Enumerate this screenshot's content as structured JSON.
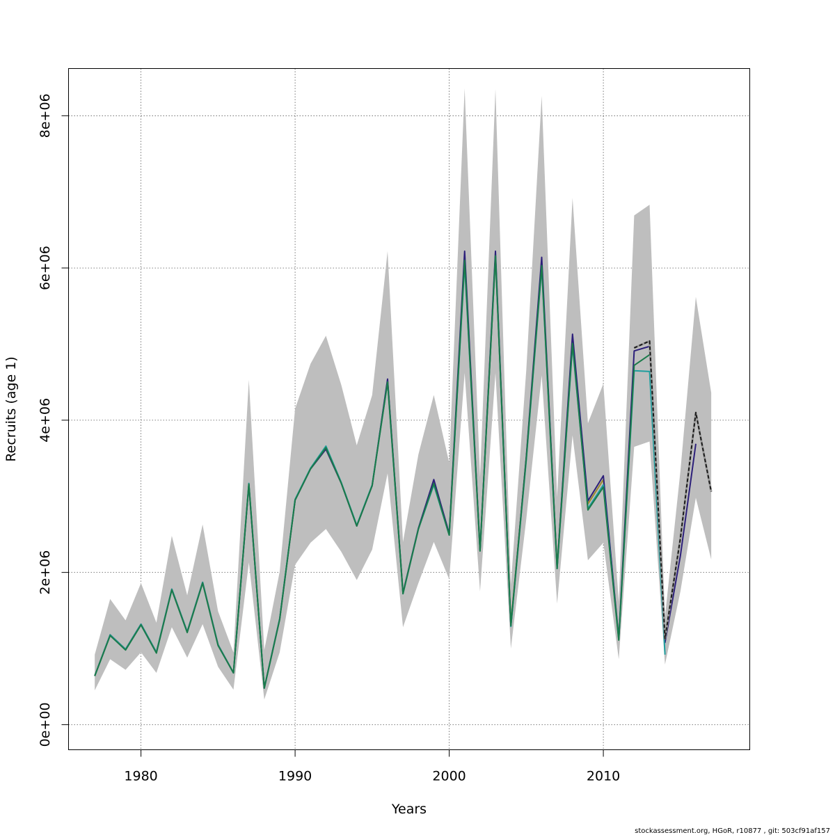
{
  "chart_data": {
    "type": "line",
    "title": "",
    "xlabel": "Years",
    "ylabel": "Recruits (age 1)",
    "xlim": [
      1975.3,
      2019.5
    ],
    "ylim": [
      -330000,
      8620000
    ],
    "x_ticks": [
      1980,
      1990,
      2000,
      2010
    ],
    "x_tick_labels": [
      "1980",
      "1990",
      "2000",
      "2010"
    ],
    "y_ticks": [
      0,
      2000000,
      4000000,
      6000000,
      8000000
    ],
    "y_tick_labels": [
      "0e+00",
      "2e+06",
      "4e+06",
      "6e+06",
      "8e+06"
    ],
    "grid": true,
    "legend": "none",
    "confidence_band": {
      "x": [
        1977,
        1978,
        1979,
        1980,
        1981,
        1982,
        1983,
        1984,
        1985,
        1986,
        1987,
        1988,
        1989,
        1990,
        1991,
        1992,
        1993,
        1994,
        1995,
        1996,
        1997,
        1998,
        1999,
        2000,
        2001,
        2002,
        2003,
        2004,
        2005,
        2006,
        2007,
        2008,
        2009,
        2010,
        2011,
        2012,
        2013,
        2014,
        2015,
        2016,
        2017
      ],
      "lower": [
        450000,
        860000,
        720000,
        950000,
        680000,
        1280000,
        880000,
        1320000,
        760000,
        460000,
        2130000,
        330000,
        950000,
        2100000,
        2390000,
        2570000,
        2270000,
        1900000,
        2300000,
        3300000,
        1280000,
        1860000,
        2400000,
        1910000,
        4620000,
        1750000,
        4620000,
        1000000,
        2700000,
        4590000,
        1590000,
        3800000,
        2160000,
        2390000,
        860000,
        3650000,
        3720000,
        790000,
        1750000,
        2980000,
        2170000
      ],
      "upper": [
        920000,
        1650000,
        1370000,
        1860000,
        1340000,
        2480000,
        1700000,
        2630000,
        1490000,
        950000,
        4530000,
        980000,
        2010000,
        4150000,
        4740000,
        5110000,
        4460000,
        3670000,
        4330000,
        6220000,
        2400000,
        3550000,
        4330000,
        3440000,
        8360000,
        3250000,
        8350000,
        1840000,
        4660000,
        8260000,
        2990000,
        6920000,
        3960000,
        4480000,
        1610000,
        6690000,
        6830000,
        1420000,
        3330000,
        5620000,
        4360000
      ],
      "color": "#bebebe"
    },
    "series": [
      {
        "color": "#9a8a2e",
        "dashed": false,
        "x": [
          1977,
          1978,
          1979,
          1980,
          1981,
          1982,
          1983,
          1984,
          1985,
          1986,
          1987,
          1988,
          1989,
          1990,
          1991,
          1992,
          1993,
          1994,
          1995,
          1996,
          1997,
          1998,
          1999,
          2000,
          2001,
          2002,
          2003,
          2004,
          2005,
          2006,
          2007,
          2008,
          2009,
          2010,
          2011
        ],
        "y": [
          640000,
          1180000,
          990000,
          1320000,
          950000,
          1780000,
          1220000,
          1870000,
          1050000,
          680000,
          3160000,
          480000,
          1390000,
          2950000,
          3360000,
          3620000,
          3170000,
          2610000,
          3140000,
          4530000,
          1730000,
          2570000,
          3190000,
          2500000,
          6100000,
          2300000,
          6150000,
          1330000,
          3500000,
          6050000,
          2080000,
          5060000,
          2900000,
          3220000,
          1150000
        ]
      },
      {
        "color": "#2c1f7a",
        "dashed": false,
        "x": [
          1977,
          1978,
          1979,
          1980,
          1981,
          1982,
          1983,
          1984,
          1985,
          1986,
          1987,
          1988,
          1989,
          1990,
          1991,
          1992,
          1993,
          1994,
          1995,
          1996,
          1997,
          1998,
          1999,
          2000,
          2001,
          2002,
          2003,
          2004,
          2005,
          2006,
          2007,
          2008,
          2009,
          2010,
          2011,
          2012,
          2013,
          2014,
          2015,
          2016
        ],
        "y": [
          640000,
          1180000,
          990000,
          1320000,
          950000,
          1780000,
          1220000,
          1870000,
          1050000,
          680000,
          3150000,
          480000,
          1390000,
          2950000,
          3360000,
          3620000,
          3170000,
          2610000,
          3140000,
          4540000,
          1730000,
          2580000,
          3220000,
          2510000,
          6220000,
          2290000,
          6220000,
          1300000,
          3520000,
          6140000,
          2060000,
          5130000,
          2940000,
          3270000,
          1130000,
          4910000,
          4970000,
          1080000,
          2220000,
          3690000
        ]
      },
      {
        "color": "#1f9e9e",
        "dashed": false,
        "x": [
          1977,
          1978,
          1979,
          1980,
          1981,
          1982,
          1983,
          1984,
          1985,
          1986,
          1987,
          1988,
          1989,
          1990,
          1991,
          1992,
          1993,
          1994,
          1995,
          1996,
          1997,
          1998,
          1999,
          2000,
          2001,
          2002,
          2003,
          2004,
          2005,
          2006,
          2007,
          2008,
          2009,
          2010,
          2011,
          2012,
          2013,
          2014
        ],
        "y": [
          640000,
          1180000,
          990000,
          1320000,
          950000,
          1780000,
          1220000,
          1870000,
          1050000,
          680000,
          3170000,
          480000,
          1390000,
          2960000,
          3370000,
          3660000,
          3180000,
          2620000,
          3150000,
          4500000,
          1720000,
          2570000,
          3150000,
          2490000,
          6050000,
          2290000,
          6150000,
          1290000,
          3480000,
          6000000,
          2050000,
          4980000,
          2840000,
          3150000,
          1120000,
          4650000,
          4640000,
          920000
        ]
      },
      {
        "color": "#1a7a4a",
        "dashed": false,
        "x": [
          1977,
          1978,
          1979,
          1980,
          1981,
          1982,
          1983,
          1984,
          1985,
          1986,
          1987,
          1988,
          1989,
          1990,
          1991,
          1992,
          1993,
          1994,
          1995,
          1996,
          1997,
          1998,
          1999,
          2000,
          2001,
          2002,
          2003,
          2004,
          2005,
          2006,
          2007,
          2008,
          2009,
          2010,
          2011,
          2012,
          2013
        ],
        "y": [
          640000,
          1170000,
          980000,
          1310000,
          940000,
          1770000,
          1210000,
          1860000,
          1040000,
          680000,
          3160000,
          480000,
          1380000,
          2950000,
          3360000,
          3640000,
          3170000,
          2610000,
          3140000,
          4500000,
          1720000,
          2570000,
          3170000,
          2490000,
          6100000,
          2280000,
          6160000,
          1300000,
          3500000,
          6030000,
          2050000,
          5010000,
          2820000,
          3120000,
          1110000,
          4720000,
          4860000
        ]
      },
      {
        "color": "#1a1a1a",
        "dashed": true,
        "x": [
          2012,
          2013,
          2014,
          2015,
          2016,
          2017
        ],
        "y": [
          4950000,
          5040000,
          1130000,
          2450000,
          4100000,
          3060000
        ]
      }
    ]
  },
  "footer": {
    "text": "stockassessment.org, HGoR, r10877 , git: 503cf91af157"
  }
}
